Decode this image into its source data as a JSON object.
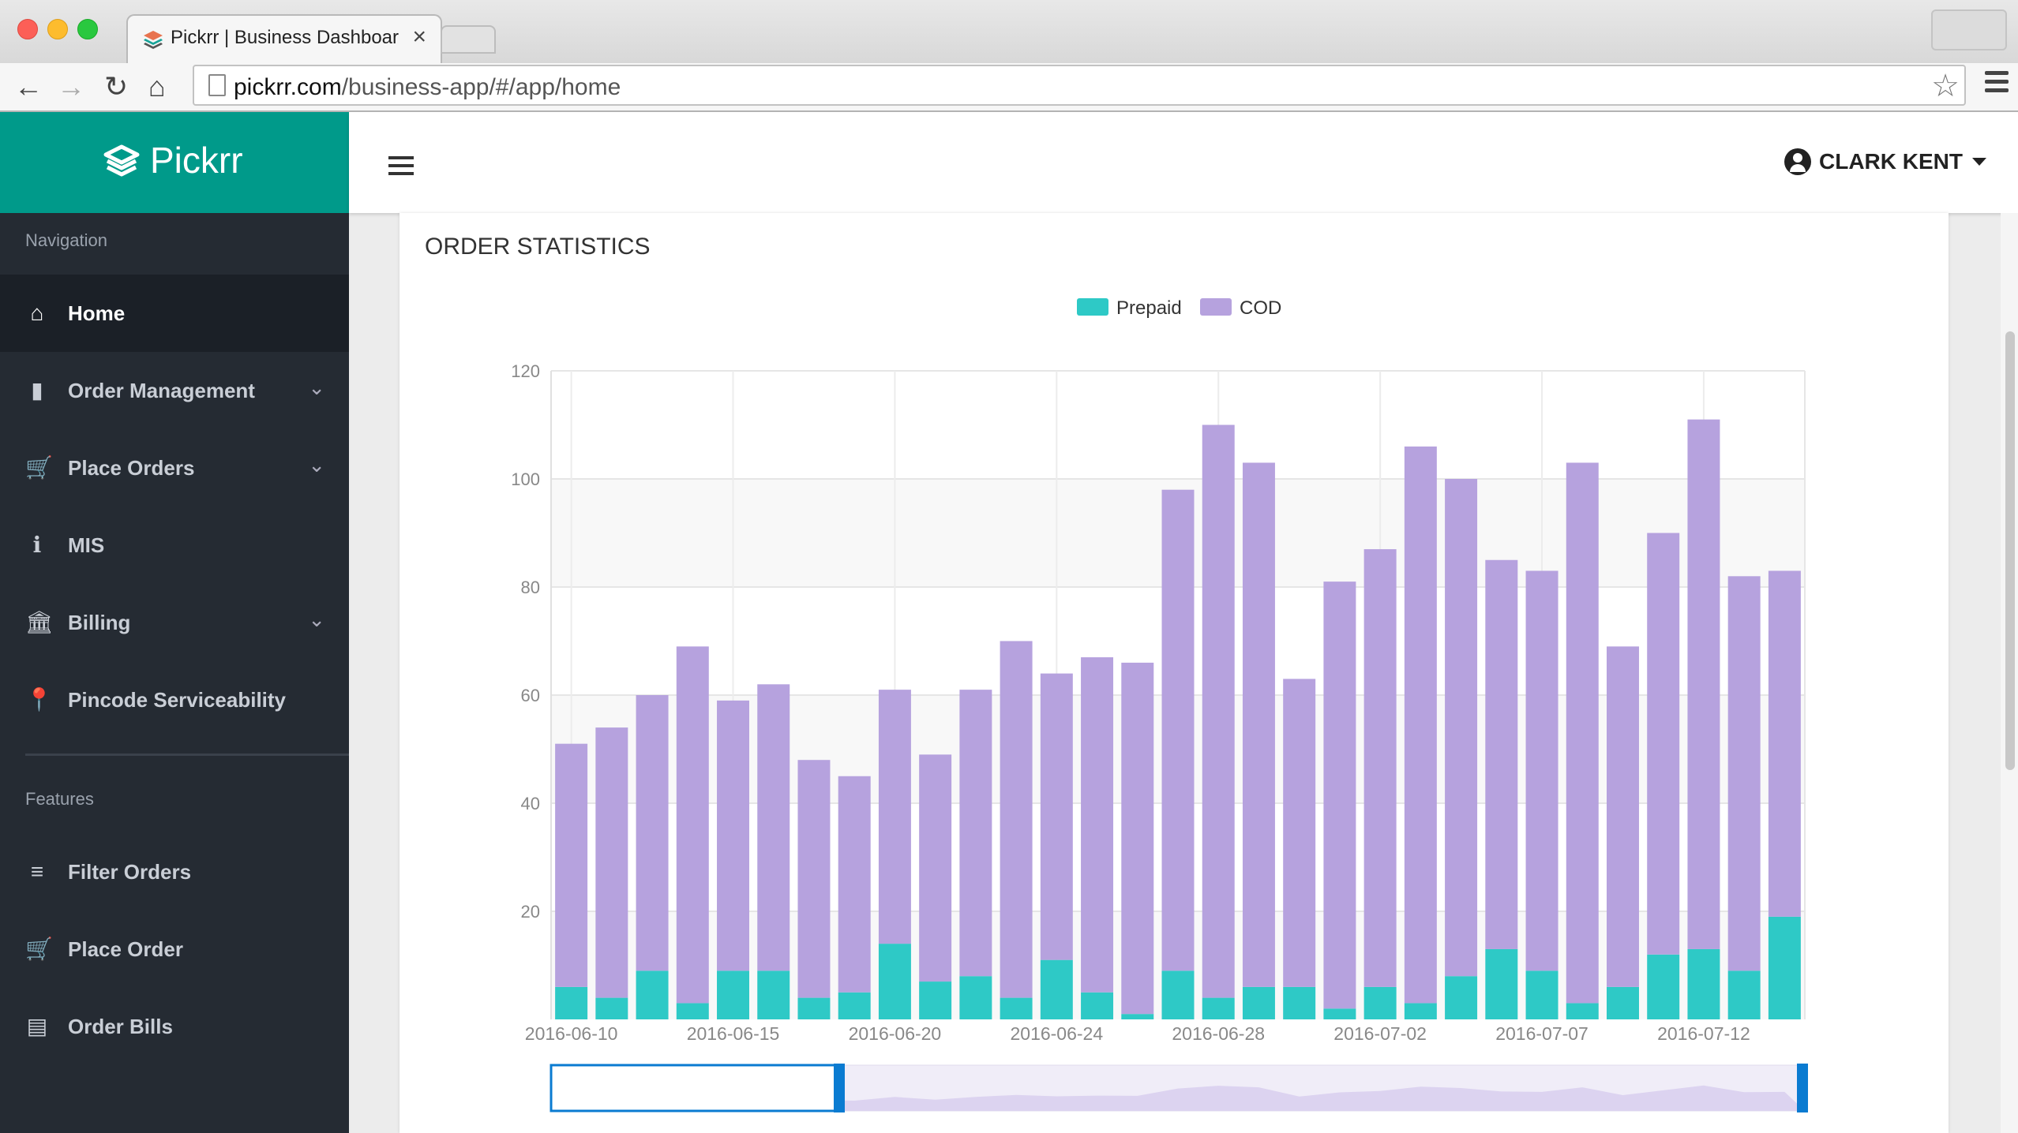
{
  "browser": {
    "tab_title": "Pickrr | Business Dashboard",
    "tab_close": "×",
    "url_host": "pickrr.com",
    "url_path": "/business-app/#/app/home",
    "nav": {
      "back": "←",
      "forward": "→",
      "reload": "↻",
      "home": "⌂"
    },
    "star": "☆"
  },
  "brand": {
    "name": "Pickrr",
    "color": "#009a8a"
  },
  "sidebar": {
    "navigation_label": "Navigation",
    "features_label": "Features",
    "nav_items": [
      {
        "label": "Home",
        "icon": "home-icon",
        "glyph": "⌂",
        "active": true
      },
      {
        "label": "Order Management",
        "icon": "orders-icon",
        "glyph": "▮",
        "chevron": "⌄"
      },
      {
        "label": "Place Orders",
        "icon": "cart-icon",
        "glyph": "🛒",
        "chevron": "⌄"
      },
      {
        "label": "MIS",
        "icon": "info-icon",
        "glyph": "ℹ"
      },
      {
        "label": "Billing",
        "icon": "bank-icon",
        "glyph": "🏛",
        "chevron": "⌄"
      },
      {
        "label": "Pincode Serviceability",
        "icon": "location-pin-icon",
        "glyph": "📍"
      }
    ],
    "feature_items": [
      {
        "label": "Filter Orders",
        "icon": "filter-icon",
        "glyph": "≡"
      },
      {
        "label": "Place Order",
        "icon": "add-cart-icon",
        "glyph": "🛒"
      },
      {
        "label": "Order Bills",
        "icon": "bills-icon",
        "glyph": "▤"
      }
    ]
  },
  "header": {
    "user_name": "CLARK KENT"
  },
  "panel": {
    "title": "ORDER STATISTICS"
  },
  "chart_data": {
    "type": "bar",
    "stacked": true,
    "legend_position": "top-center",
    "grid": true,
    "ylim": [
      0,
      120
    ],
    "yticks": [
      20,
      40,
      60,
      80,
      100,
      120
    ],
    "x_tick_labels": [
      "2016-06-10",
      "2016-06-15",
      "2016-06-20",
      "2016-06-24",
      "2016-06-28",
      "2016-07-02",
      "2016-07-07",
      "2016-07-12"
    ],
    "series": [
      {
        "name": "Prepaid",
        "color": "#2ec9c6",
        "values": [
          6,
          4,
          9,
          3,
          9,
          9,
          4,
          5,
          14,
          7,
          8,
          4,
          11,
          5,
          1,
          9,
          4,
          6,
          6,
          2,
          6,
          3,
          8,
          13,
          9,
          3,
          6,
          12,
          13,
          9,
          19
        ]
      },
      {
        "name": "COD",
        "color": "#b6a2de",
        "values": [
          45,
          50,
          51,
          66,
          50,
          53,
          44,
          40,
          47,
          42,
          53,
          66,
          53,
          62,
          65,
          89,
          106,
          97,
          57,
          79,
          81,
          103,
          92,
          72,
          74,
          100,
          63,
          78,
          98,
          73,
          64
        ]
      }
    ]
  }
}
